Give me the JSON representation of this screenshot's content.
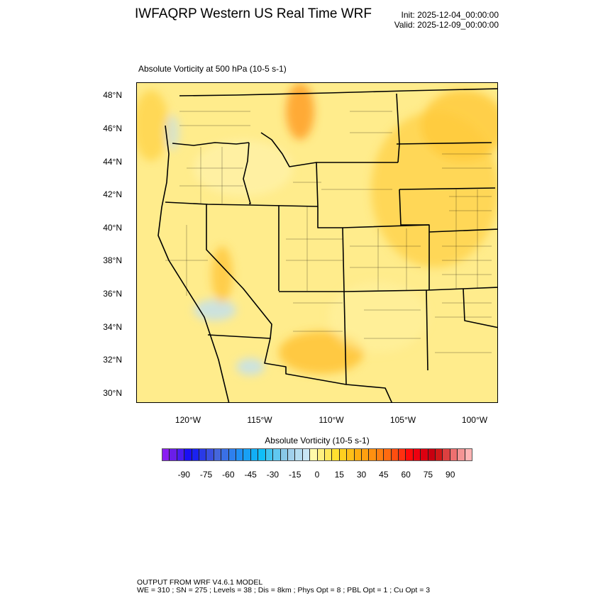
{
  "header": {
    "title": "IWFAQRP Western US Real Time WRF",
    "init": "Init: 2025-12-04_00:00:00",
    "valid": "Valid: 2025-12-09_00:00:00"
  },
  "plot": {
    "subtitle": "Absolute Vorticity at 500 hPa   (10-5 s-1)",
    "lat_labels": [
      "48°N",
      "46°N",
      "44°N",
      "42°N",
      "40°N",
      "38°N",
      "36°N",
      "34°N",
      "32°N",
      "30°N"
    ],
    "lon_labels": [
      "120°W",
      "115°W",
      "110°W",
      "105°W",
      "100°W"
    ],
    "background_color": "#ffec8c"
  },
  "colorbar": {
    "title": "Absolute Vorticity  (10-5 s-1)",
    "labels": [
      "-90",
      "-75",
      "-60",
      "-45",
      "-30",
      "-15",
      "0",
      "15",
      "30",
      "45",
      "60",
      "75",
      "90"
    ],
    "colors": [
      "#8a1ef2",
      "#6a1ee8",
      "#4a1cf0",
      "#1a0ff5",
      "#1a22f0",
      "#2a3ae6",
      "#3a50e0",
      "#4566dc",
      "#3a70e6",
      "#2e80ee",
      "#2090f5",
      "#18a0f5",
      "#12aef5",
      "#10bef8",
      "#40c4f0",
      "#60c8f0",
      "#88c8e8",
      "#a0d0ec",
      "#b4dcf0",
      "#c8e6f4",
      "#fffaaa",
      "#fff080",
      "#ffe85a",
      "#ffe030",
      "#ffd020",
      "#ffc018",
      "#ffae10",
      "#ffa010",
      "#ff9010",
      "#ff7e10",
      "#ff6a10",
      "#ff4e10",
      "#ff3010",
      "#ff0a0a",
      "#ee0010",
      "#dc0010",
      "#c80010",
      "#d01818",
      "#dc4040",
      "#ee7070",
      "#f49494",
      "#ffb4b4"
    ]
  },
  "footer": {
    "line1": "OUTPUT FROM WRF V4.6.1 MODEL",
    "line2": "WE = 310 ; SN = 275 ; Levels = 38 ; Dis = 8km ; Phys Opt = 8 ; PBL Opt = 1 ; Cu Opt = 3"
  }
}
